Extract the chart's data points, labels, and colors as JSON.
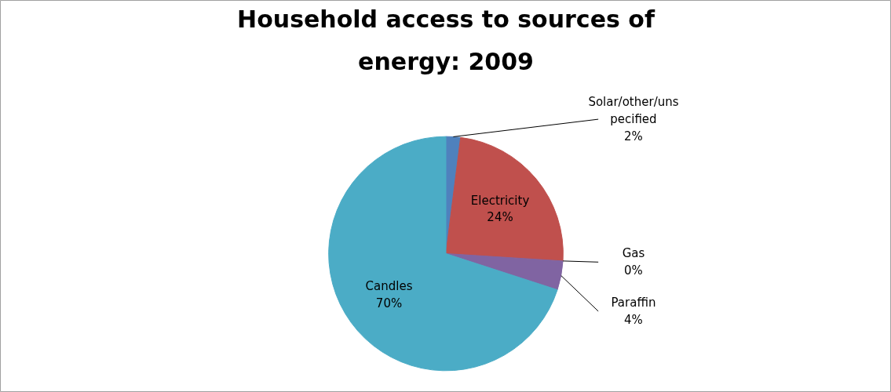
{
  "chart_data": {
    "type": "pie",
    "title": "Household access to sources of energy: 2009",
    "categories": [
      "Solar/other/unspecified",
      "Electricity",
      "Gas",
      "Paraffin",
      "Candles"
    ],
    "values": [
      2,
      24,
      0,
      4,
      70
    ],
    "colors": [
      "#4f81bd",
      "#c0504d",
      "#f2c14e",
      "#8064a2",
      "#4bacc6"
    ],
    "value_labels": [
      "2%",
      "24%",
      "0%",
      "4%",
      "70%"
    ]
  }
}
